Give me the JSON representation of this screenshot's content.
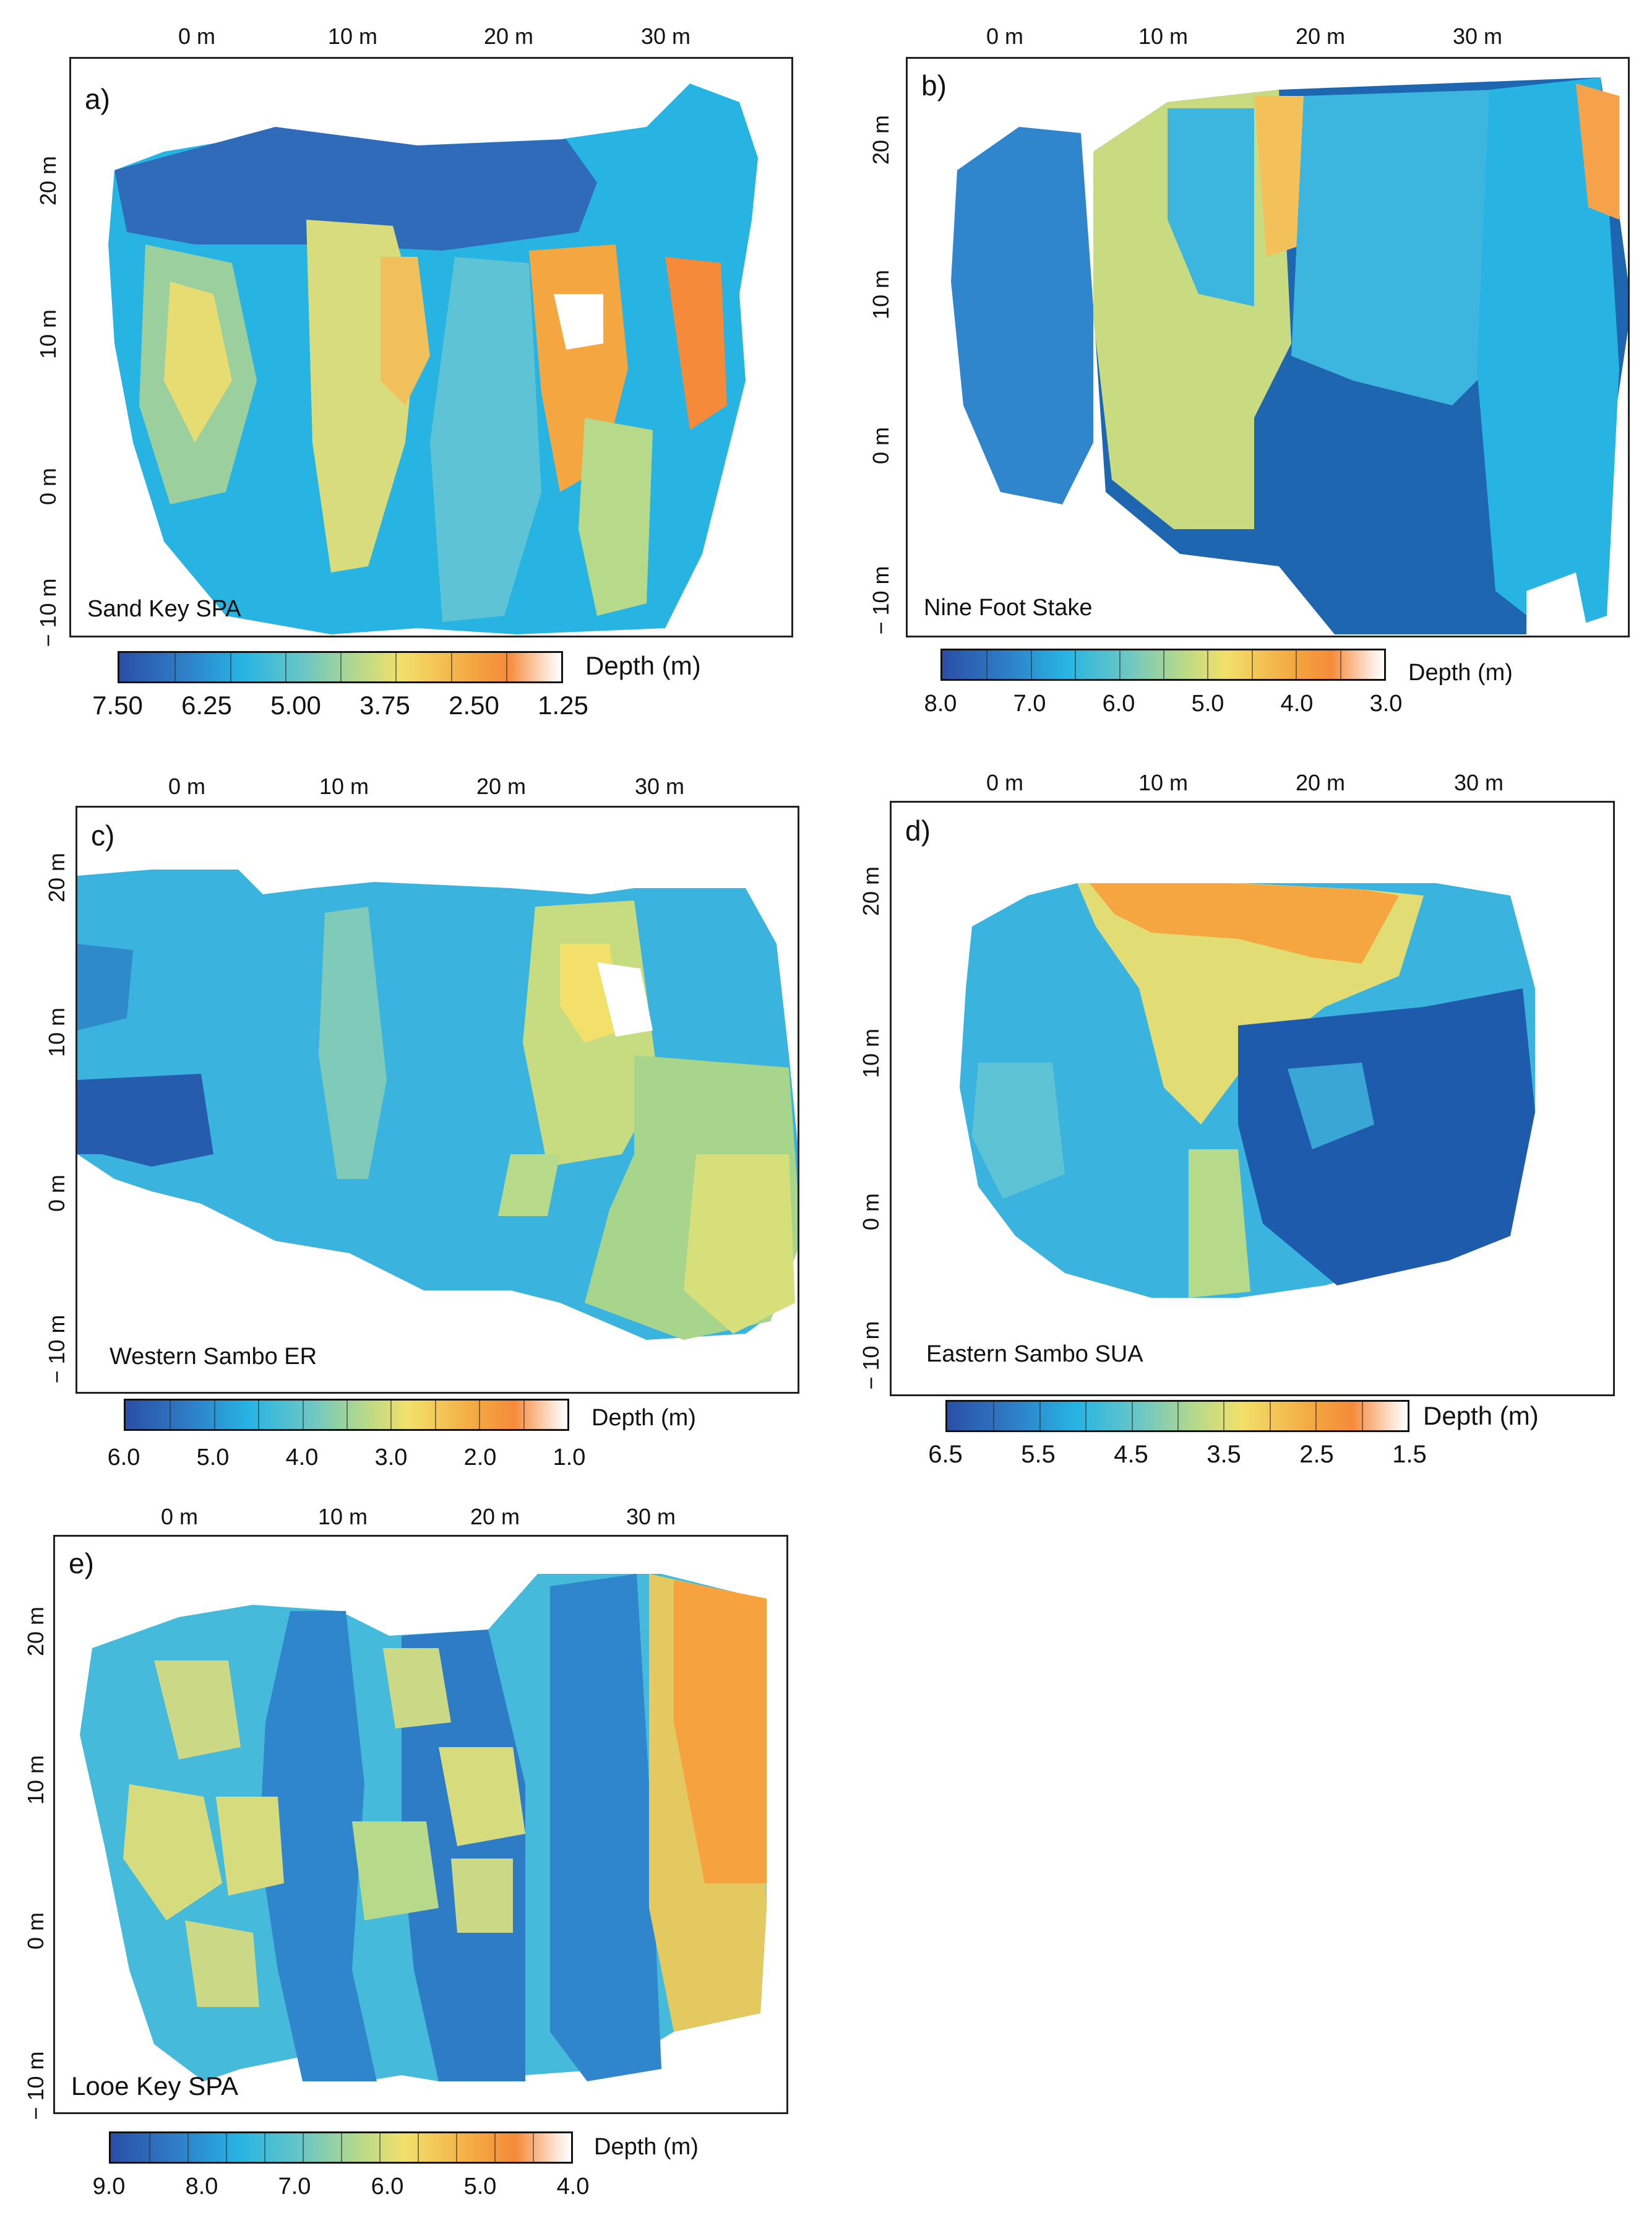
{
  "palette": {
    "deep": "#2a4fa6",
    "mid_blue": "#27b4e3",
    "green": "#b6d98a",
    "yellow": "#f2e06a",
    "orange": "#f58a3a",
    "shallow": "#ffffff"
  },
  "x_ticks": [
    "0 m",
    "10 m",
    "20 m",
    "30 m"
  ],
  "y_ticks": [
    "20 m",
    "10 m",
    "0 m",
    "− 10 m"
  ],
  "panels": [
    {
      "label": "a)",
      "site": "Sand Key SPA",
      "colorbar": {
        "title": "Depth (m)",
        "ticks": [
          "7.50",
          "6.25",
          "5.00",
          "3.75",
          "2.50",
          "1.25"
        ]
      }
    },
    {
      "label": "b)",
      "site": "Nine Foot Stake",
      "colorbar": {
        "title": "Depth (m)",
        "ticks": [
          "8.0",
          "7.0",
          "6.0",
          "5.0",
          "4.0",
          "3.0"
        ]
      }
    },
    {
      "label": "c)",
      "site": "Western Sambo ER",
      "colorbar": {
        "title": "Depth (m)",
        "ticks": [
          "6.0",
          "5.0",
          "4.0",
          "3.0",
          "2.0",
          "1.0"
        ]
      }
    },
    {
      "label": "d)",
      "site": "Eastern Sambo SUA",
      "colorbar": {
        "title": "Depth (m)",
        "ticks": [
          "6.5",
          "5.5",
          "4.5",
          "3.5",
          "2.5",
          "1.5"
        ]
      }
    },
    {
      "label": "e)",
      "site": "Looe Key SPA",
      "colorbar": {
        "title": "Depth (m)",
        "ticks": [
          "9.0",
          "8.0",
          "7.0",
          "6.0",
          "5.0",
          "4.0"
        ]
      }
    }
  ]
}
